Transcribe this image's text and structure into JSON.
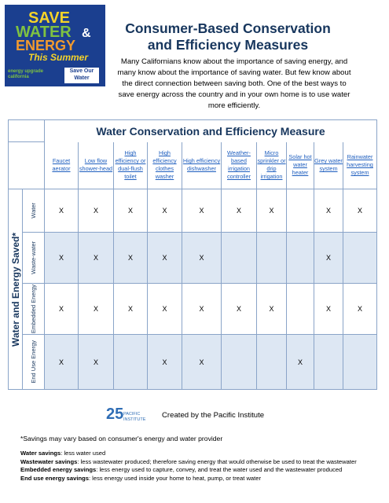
{
  "logo": {
    "line1": "SAVE",
    "line2": "WATER",
    "amp": "&",
    "line3": "ENERGY",
    "line4": "This Summer",
    "partner1": "energy upgrade california",
    "partner2": "Save Our Water"
  },
  "header": {
    "title_line1": "Consumer-Based Conservation",
    "title_line2": "and Efficiency Measures",
    "intro": "Many Californians know about the importance of saving energy, and many know about the importance of saving water. But few know about the direct connection between saving both. One of the best ways to save energy across the country and in your own home is to use water more efficiently."
  },
  "table": {
    "title": "Water Conservation and Efficiency Measure",
    "side_label": "Water and Energy Saved*",
    "columns": [
      "Faucet aerator",
      "Low flow shower-head",
      "High efficiency or dual-flush toilet",
      "High efficiency clothes washer",
      "High efficiency dishwasher",
      "Weather-based irrigation controller",
      "Micro sprinkler or drip irrigation",
      "Solar hot water heater",
      "Grey water system",
      "Rainwater harvesting system"
    ],
    "rows": [
      {
        "label": "Water",
        "cells": [
          "X",
          "X",
          "X",
          "X",
          "X",
          "X",
          "X",
          null,
          "X",
          "X"
        ]
      },
      {
        "label": "Waste-water",
        "cells": [
          "X",
          "X",
          "X",
          "X",
          "X",
          null,
          null,
          null,
          "X",
          null
        ]
      },
      {
        "label": "Embedded Energy",
        "cells": [
          "X",
          "X",
          "X",
          "X",
          "X",
          "X",
          "X",
          null,
          "X",
          "X"
        ]
      },
      {
        "label": "End Use Energy",
        "cells": [
          "X",
          "X",
          null,
          "X",
          "X",
          null,
          null,
          "X",
          null,
          null
        ]
      }
    ]
  },
  "footer": {
    "logo_number": "25",
    "logo_text": "PACIFIC INSTITUTE",
    "credit": "Created by the Pacific Institute",
    "footnote": "*Savings may vary based on consumer's energy and water provider",
    "definitions": [
      {
        "term": "Water savings",
        "text": ": less water used"
      },
      {
        "term": "Wastewater savings",
        "text": ": less wastewater produced; therefore saving energy that would otherwise be used to treat the wastewater"
      },
      {
        "term": "Embedded energy savings",
        "text": ": less energy used to capture, convey, and treat the water used and the wastewater produced"
      },
      {
        "term": "End use energy savings",
        "text": ": less energy used inside your home to heat, pump, or treat water"
      }
    ]
  }
}
